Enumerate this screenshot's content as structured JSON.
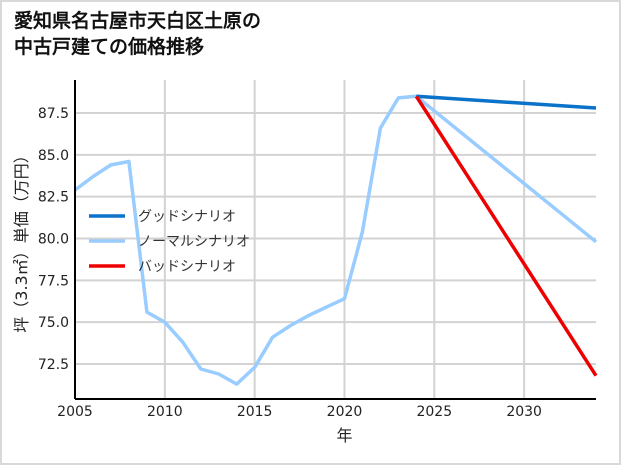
{
  "title_lines": [
    "愛知県名古屋市天白区土原の",
    "中古戸建ての価格推移"
  ],
  "chart_data": {
    "type": "line",
    "title": "愛知県名古屋市天白区土原の中古戸建ての価格推移",
    "xlabel": "年",
    "ylabel": "坪（3.3㎡）単価（万円）",
    "xlim": [
      2005,
      2034
    ],
    "ylim": [
      70.5,
      89.5
    ],
    "xticks": [
      2005,
      2010,
      2015,
      2020,
      2025,
      2030
    ],
    "xtick_labels": [
      "2005",
      "2010",
      "2015",
      "2020",
      "2025",
      "2030"
    ],
    "yticks": [
      72.5,
      75.0,
      77.5,
      80.0,
      82.5,
      85.0,
      87.5
    ],
    "ytick_labels": [
      "72.5",
      "75.0",
      "77.5",
      "80.0",
      "82.5",
      "85.0",
      "87.5"
    ],
    "grid": true,
    "legend_position": "center-left",
    "series": [
      {
        "name": "グッドシナリオ",
        "color": "#0a72c8",
        "x": [
          2024,
          2034
        ],
        "values": [
          88.5,
          87.8
        ]
      },
      {
        "name": "ノーマルシナリオ",
        "color": "#99ccff",
        "x": [
          2005,
          2006,
          2007,
          2008,
          2009,
          2010,
          2011,
          2012,
          2013,
          2014,
          2015,
          2016,
          2017,
          2018,
          2019,
          2020,
          2021,
          2022,
          2023,
          2024,
          2034
        ],
        "values": [
          82.9,
          83.7,
          84.4,
          84.6,
          75.6,
          75.0,
          73.8,
          72.2,
          71.9,
          71.3,
          72.3,
          74.1,
          74.8,
          75.4,
          75.9,
          76.4,
          80.4,
          86.6,
          88.4,
          88.5,
          79.8
        ]
      },
      {
        "name": "バッドシナリオ",
        "color": "#ee0000",
        "x": [
          2024,
          2034
        ],
        "values": [
          88.5,
          71.8
        ]
      }
    ]
  }
}
